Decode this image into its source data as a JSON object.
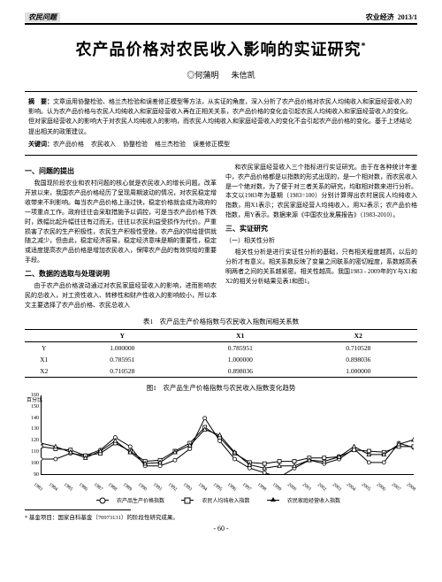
{
  "header": {
    "section_tag": "农民问题",
    "journal": "农业经济",
    "issue": "2013/1"
  },
  "title": "农产品价格对农民收入影响的实证研究",
  "title_sup": "*",
  "authors": [
    "◎何蒲明",
    "朱信凯"
  ],
  "abstract": {
    "label": "摘　要：",
    "text": "文章运用协整检验、格兰杰检验和误差修正模型等方法，从实证的角度，深入分析了农产品价格对农民人均纯收入和家庭经营收入的影响。认为农产品价格与农民人均纯收入和家庭经营收入再在正相关关系，农产品价格的变化会引起农民人均纯收入和家庭经营收入的变化。但对家庭经营收入的影响大于对农民人均纯收入的影响，而农民人均纯收入和家庭经营收入的变化不会引起农产品价格的变化。基于上述结论提出相关的政策建议。"
  },
  "keywords": {
    "label": "关键词：",
    "items": [
      "农产品价格",
      "农民收入",
      "协整检验",
      "格兰杰检验",
      "误差修正模型"
    ]
  },
  "left_col": {
    "h1": "一、问题的提出",
    "p1": "我国现阶段农业和农村问题的核心就是农民收入的增长问题。改革开放以来，我国农产品价格经历了呈现周期波动的情况，对农民稳定增收带来不利影响。每当农产品价格上涨过快，稳定价格就会成为政府的一项重点工作。政府往往会采取措施予以调控，可是当农产品价格下跌时，跌幅比起升幅往往有过而无，往往以农民利益受损作为代价。严重损害了农民的生产积极性，农民生产积极性受挫，农产品的供给提供就随之减少，但由此，稳定经济容易，稳定经济意味是期的重要性，稳定或适度提高农产品价格是增加农民收入，保障农产品的有效供给的重要手段。",
    "h2": "二、数据的选取与处理说明",
    "p2": "由于农产品价格波动通过对农民家庭经营收入的影响，进而影响农民的总收入，对工资性收入、转移性和财产性收入的影响较小，所以本文主要选择了农产品价格、农民总收入"
  },
  "right_col": {
    "p1": "和农民家庭经营收入三个指标进行实证研究。由于在各种统计年鉴中，农产品价格都是以指数的形式出现的，是一个相对数，而农民收入是一个绝对数，为了便于对三者关系的研究，均取相对数来进行分析。本文以1983年为基期（1983=100）分别计算得出农村居民人均纯收入指数，用X1表示；农民家庭经营人均纯收入，用X2表示；农产品价格指数，用Y表示。数据来源《中国农业发展报告》（1983-2010）。",
    "h1": "三、实证研究",
    "h2": "（一）相关性分析",
    "p2": "相关性分析是进行实证性分析的基础，只有相关程度越高，以后的分析才有意义。相关系数反映了变量之间联系的密切程度，系数越高表明两者之间的关系越紧密。相关性越高。我国1983 - 2009年的Y与X1和X2的相关分析结果见表1和图1。"
  },
  "table": {
    "caption": "表1　农产品生产价格指数与农民收入指数间相关系数",
    "columns": [
      "",
      "Y",
      "X1",
      "X2"
    ],
    "rows": [
      [
        "Y",
        "1.000000",
        "0.785951",
        "0.710528"
      ],
      [
        "X1",
        "0.785951",
        "1.000000",
        "0.898036"
      ],
      [
        "X2",
        "0.710528",
        "0.898036",
        "1.000000"
      ]
    ]
  },
  "figure": {
    "caption": "图1　农产品生产价格指数与农民收入指数变化趋势",
    "ytitle": "百分比",
    "ylim": [
      90,
      160
    ],
    "yticks": [
      90,
      100,
      110,
      120,
      130,
      140,
      150,
      160
    ],
    "xticks": [
      "1983",
      "1984",
      "1985",
      "1986",
      "1987",
      "1988",
      "1989",
      "1990",
      "1991",
      "1992",
      "1993",
      "1994",
      "1995",
      "1996",
      "1997",
      "1998",
      "1999",
      "2000",
      "2001",
      "2002",
      "2003",
      "2004",
      "2005",
      "2006",
      "2007",
      "2008"
    ],
    "series": [
      {
        "name": "农产品生产价格指数",
        "marker": "round",
        "values": [
          104,
          104,
          109,
          107,
          112,
          123,
          115,
          98,
          98,
          103,
          113,
          140,
          120,
          104,
          96,
          92,
          88,
          96,
          103,
          100,
          104,
          113,
          101,
          101,
          118,
          114
        ]
      },
      {
        "name": "农民人均纯收入指数",
        "marker": "square",
        "values": [
          115,
          113,
          112,
          107,
          109,
          118,
          111,
          102,
          103,
          111,
          118,
          132,
          123,
          109,
          101,
          100,
          102,
          102,
          105,
          105,
          106,
          112,
          111,
          110,
          115,
          115
        ]
      },
      {
        "name": "农民家庭经营收入指数",
        "marker": "tri",
        "values": [
          118,
          115,
          110,
          105,
          111,
          120,
          110,
          100,
          101,
          110,
          116,
          130,
          125,
          110,
          99,
          96,
          98,
          98,
          103,
          102,
          106,
          115,
          108,
          108,
          117,
          121
        ]
      }
    ],
    "line_color": "#000000",
    "background": "#ffffff"
  },
  "footnote": {
    "label": "* 基金项目：",
    "text": "国家自科基金（70973131）的阶段性研究成果。"
  },
  "page_num": "- 60 -"
}
